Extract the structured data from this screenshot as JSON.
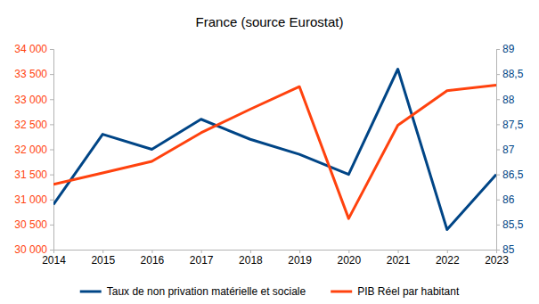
{
  "chart_data": {
    "type": "line",
    "title": "France (source Eurostat)",
    "x": [
      2014,
      2015,
      2016,
      2017,
      2018,
      2019,
      2020,
      2021,
      2022,
      2023
    ],
    "xlim": [
      2014,
      2023
    ],
    "xticks": [
      2014,
      2015,
      2016,
      2017,
      2018,
      2019,
      2020,
      2021,
      2022,
      2023
    ],
    "ylim": [
      30000,
      34000
    ],
    "yticks": [
      {
        "value": 30000,
        "label": "30 000"
      },
      {
        "value": 30500,
        "label": "30 500"
      },
      {
        "value": 31000,
        "label": "31 000"
      },
      {
        "value": 31500,
        "label": "31 500"
      },
      {
        "value": 32000,
        "label": "32 000"
      },
      {
        "value": 32500,
        "label": "32 500"
      },
      {
        "value": 33000,
        "label": "33 000"
      },
      {
        "value": 33500,
        "label": "33 500"
      },
      {
        "value": 34000,
        "label": "34 000"
      }
    ],
    "y2lim": [
      85,
      89
    ],
    "y2ticks": [
      85,
      {
        "value": 85.5,
        "label": "85,5"
      },
      86,
      {
        "value": 86.5,
        "label": "86,5"
      },
      87,
      {
        "value": 87.5,
        "label": "87,5"
      },
      88,
      {
        "value": 88.5,
        "label": "88,5"
      },
      89
    ],
    "grid": false,
    "legend": "bottom",
    "series": [
      {
        "name": "Taux de non privation matérielle et sociale",
        "color": "#004586",
        "axis": "y2",
        "values": [
          85.9,
          87.3,
          87.0,
          87.6,
          87.2,
          86.9,
          86.5,
          88.6,
          85.4,
          86.5
        ]
      },
      {
        "name": "PIB Réel par habitant",
        "color": "#ff420e",
        "axis": "y",
        "values": [
          31300,
          31530,
          31760,
          32330,
          32800,
          33250,
          30620,
          32480,
          33170,
          33280
        ]
      }
    ]
  }
}
